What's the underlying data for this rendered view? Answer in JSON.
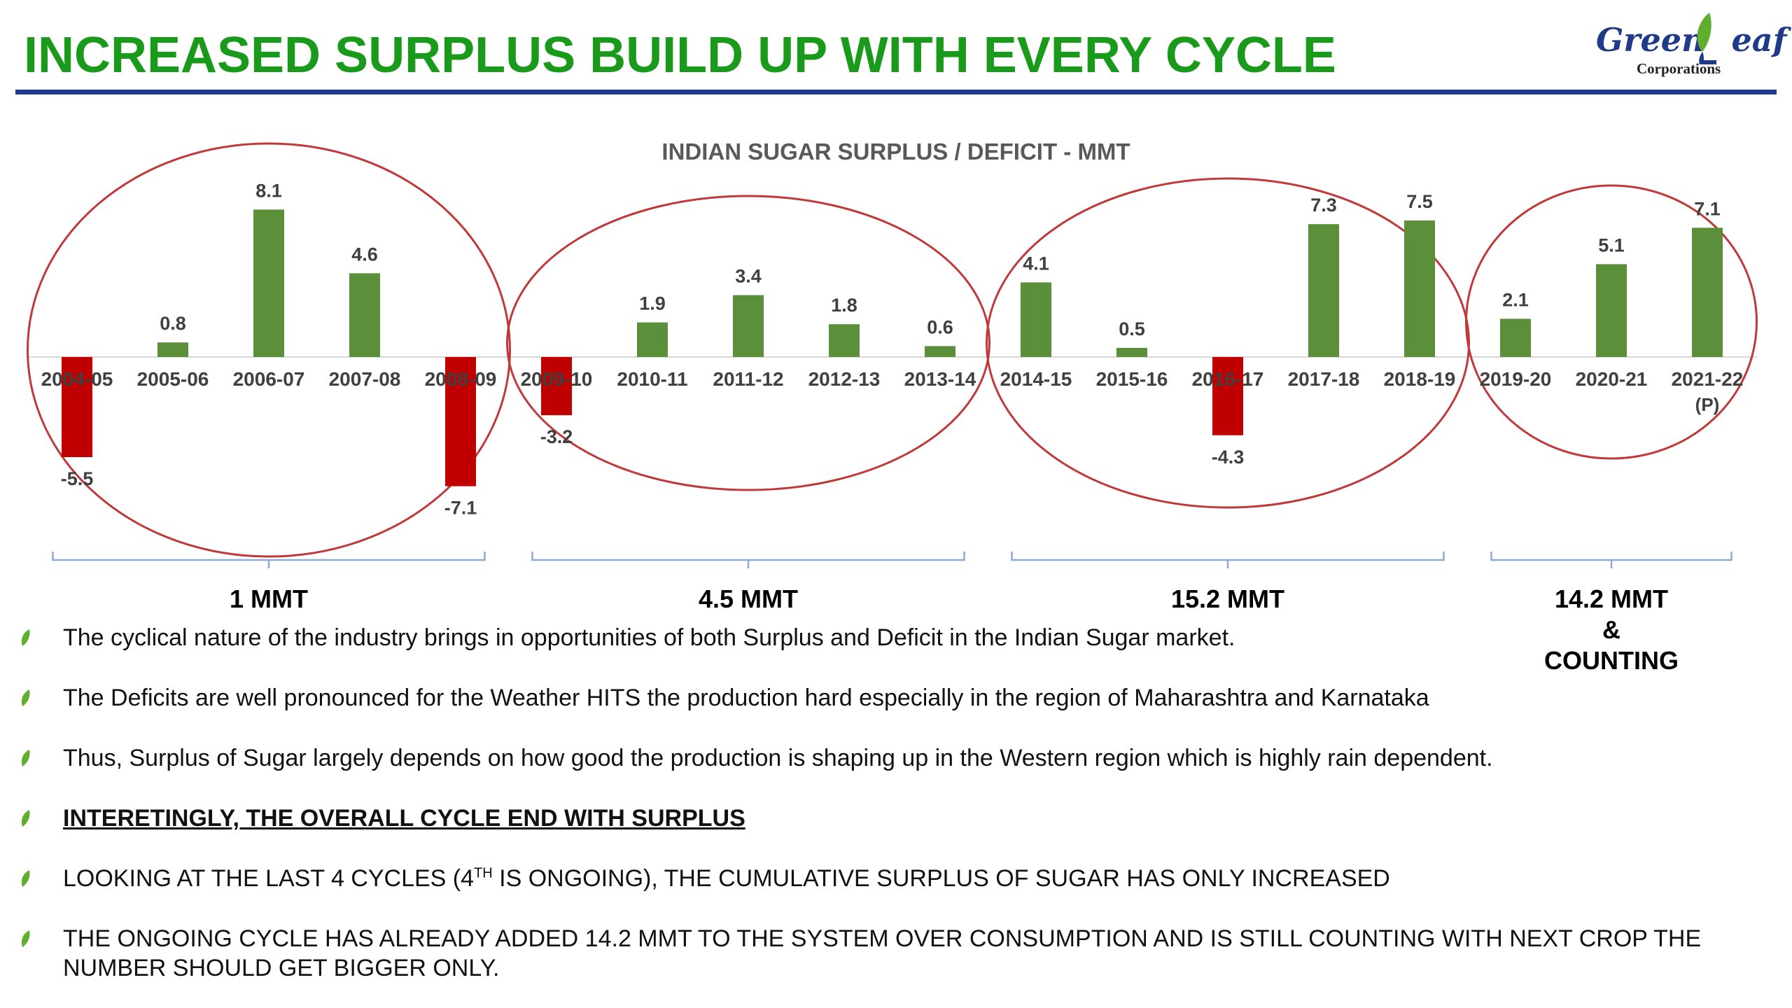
{
  "slide_title": "INCREASED SURPLUS BUILD UP WITH EVERY CYCLE",
  "logo": {
    "main_left": "Green",
    "main_right": "eaf",
    "sub": "Corporations"
  },
  "colors": {
    "surplus": "#5b8f3a",
    "deficit": "#c00000",
    "circle": "#c0393a",
    "brace": "#8eaad8",
    "title": "#1a9a1a",
    "rule": "#1f3a8a"
  },
  "chart_data": {
    "type": "bar",
    "title": "INDIAN SUGAR SURPLUS / DEFICIT - MMT",
    "categories": [
      "2004-05",
      "2005-06",
      "2006-07",
      "2007-08",
      "2008-09",
      "2009-10",
      "2010-11",
      "2011-12",
      "2012-13",
      "2013-14",
      "2014-15",
      "2015-16",
      "2016-17",
      "2017-18",
      "2018-19",
      "2019-20",
      "2020-21",
      "2021-22"
    ],
    "category_notes": [
      "",
      "",
      "",
      "",
      "",
      "",
      "",
      "",
      "",
      "",
      "",
      "",
      "",
      "",
      "",
      "",
      "",
      "(P)"
    ],
    "values": [
      -5.5,
      0.8,
      8.1,
      4.6,
      -7.1,
      -3.2,
      1.9,
      3.4,
      1.8,
      0.6,
      4.1,
      0.5,
      -4.3,
      7.3,
      7.5,
      2.1,
      5.1,
      7.1
    ],
    "ylim": [
      -8,
      9
    ],
    "grid": false,
    "cycles": [
      {
        "label": "1 MMT",
        "start": 0,
        "end": 4
      },
      {
        "label": "4.5 MMT",
        "start": 5,
        "end": 9
      },
      {
        "label": "15.2 MMT",
        "start": 10,
        "end": 14
      },
      {
        "label": "14.2 MMT",
        "label_line2": "&",
        "label_line3": "COUNTING",
        "start": 15,
        "end": 17
      }
    ]
  },
  "bullets": {
    "b1": "The cyclical nature of the industry brings in opportunities of both Surplus and Deficit in the Indian Sugar market.",
    "b2": "The Deficits are well pronounced for the Weather HITS the production hard especially in the region of Maharashtra and Karnataka",
    "b3": "Thus, Surplus of Sugar largely depends on how good the production is shaping up in the Western region which is highly rain dependent.",
    "b4": "INTERETINGLY, THE OVERALL CYCLE END WITH SURPLUS",
    "b5_pre": "LOOKING AT THE LAST 4 CYCLES (4",
    "b5_sup": "TH",
    "b5_post": " IS ONGOING), THE CUMULATIVE SURPLUS OF SUGAR HAS ONLY INCREASED",
    "b6": "THE ONGOING CYCLE HAS ALREADY ADDED 14.2 MMT TO THE SYSTEM OVER CONSUMPTION AND IS STILL COUNTING WITH NEXT CROP THE NUMBER SHOULD GET BIGGER ONLY."
  }
}
